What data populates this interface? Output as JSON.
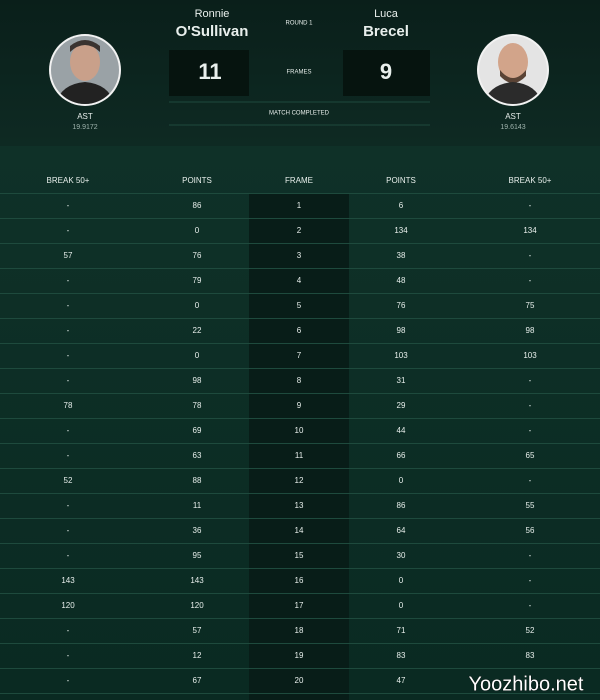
{
  "header": {
    "player1": {
      "first_name": "Ronnie",
      "last_name": "O'Sullivan",
      "stat_label": "AST",
      "stat_value": "19.9172"
    },
    "player2": {
      "first_name": "Luca",
      "last_name": "Brecel",
      "stat_label": "AST",
      "stat_value": "19.6143"
    },
    "round": "ROUND 1",
    "score1": "11",
    "score2": "9",
    "score_label": "FRAMES",
    "status": "MATCH COMPLETED"
  },
  "table": {
    "columns": [
      "BREAK 50+",
      "POINTS",
      "FRAME",
      "POINTS",
      "BREAK 50+"
    ],
    "rows": [
      [
        "-",
        "86",
        "1",
        "6",
        "-"
      ],
      [
        "-",
        "0",
        "2",
        "134",
        "134"
      ],
      [
        "57",
        "76",
        "3",
        "38",
        "-"
      ],
      [
        "-",
        "79",
        "4",
        "48",
        "-"
      ],
      [
        "-",
        "0",
        "5",
        "76",
        "75"
      ],
      [
        "-",
        "22",
        "6",
        "98",
        "98"
      ],
      [
        "-",
        "0",
        "7",
        "103",
        "103"
      ],
      [
        "-",
        "98",
        "8",
        "31",
        "-"
      ],
      [
        "78",
        "78",
        "9",
        "29",
        "-"
      ],
      [
        "-",
        "69",
        "10",
        "44",
        "-"
      ],
      [
        "-",
        "63",
        "11",
        "66",
        "65"
      ],
      [
        "52",
        "88",
        "12",
        "0",
        "-"
      ],
      [
        "-",
        "11",
        "13",
        "86",
        "55"
      ],
      [
        "-",
        "36",
        "14",
        "64",
        "56"
      ],
      [
        "-",
        "95",
        "15",
        "30",
        "-"
      ],
      [
        "143",
        "143",
        "16",
        "0",
        "-"
      ],
      [
        "120",
        "120",
        "17",
        "0",
        "-"
      ],
      [
        "-",
        "57",
        "18",
        "71",
        "52"
      ],
      [
        "-",
        "12",
        "19",
        "83",
        "83"
      ],
      [
        "-",
        "67",
        "20",
        "47",
        "-"
      ]
    ]
  },
  "watermark": "Yoozhibo.net"
}
